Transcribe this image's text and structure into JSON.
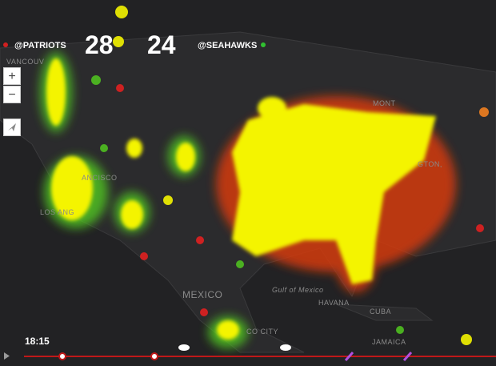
{
  "scoreboard": {
    "team_left": "@PATRIOTS",
    "score_left": "28",
    "score_right": "24",
    "team_right": "@SEAHAWKS"
  },
  "controls": {
    "zoom_in": "+",
    "zoom_out": "−"
  },
  "time": "18:15",
  "map_labels": [
    "VANCOUV",
    "ANCISCO",
    "LOS ANG",
    "MEXICO",
    "Gulf of Mexico",
    "HAVANA",
    "CUBA",
    "MONT",
    "GTON,",
    "CO CITY",
    "JAMAICA"
  ]
}
